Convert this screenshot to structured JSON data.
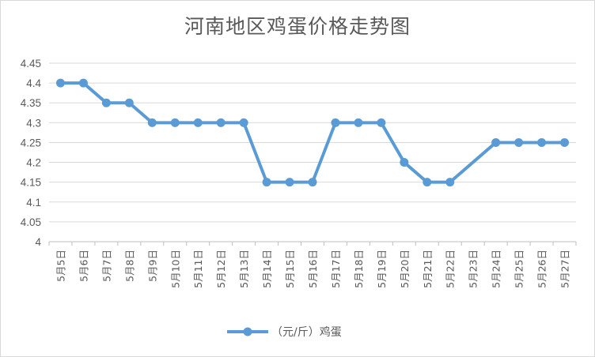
{
  "chart_data": {
    "type": "line",
    "title": "河南地区鸡蛋价格走势图",
    "categories": [
      "5月5日",
      "5月6日",
      "5月7日",
      "5月8日",
      "5月9日",
      "5月10日",
      "5月11日",
      "5月12日",
      "5月13日",
      "5月14日",
      "5月15日",
      "5月16日",
      "5月17日",
      "5月18日",
      "5月19日",
      "5月20日",
      "5月21日",
      "5月22日",
      "5月23日",
      "5月24日",
      "5月25日",
      "5月26日",
      "5月27日"
    ],
    "series": [
      {
        "name": "（元/斤）鸡蛋",
        "values": [
          4.4,
          4.4,
          4.35,
          4.35,
          4.3,
          4.3,
          4.3,
          4.3,
          4.3,
          4.15,
          4.15,
          4.15,
          4.3,
          4.3,
          4.3,
          4.2,
          4.15,
          4.15,
          null,
          4.25,
          4.25,
          4.25,
          4.25
        ],
        "color": "#5b9bd5"
      }
    ],
    "ylim": [
      4,
      4.45
    ],
    "yticks": [
      "4",
      "4.05",
      "4.1",
      "4.15",
      "4.2",
      "4.25",
      "4.3",
      "4.35",
      "4.4",
      "4.45"
    ],
    "grid": true,
    "legend": "bottom"
  }
}
